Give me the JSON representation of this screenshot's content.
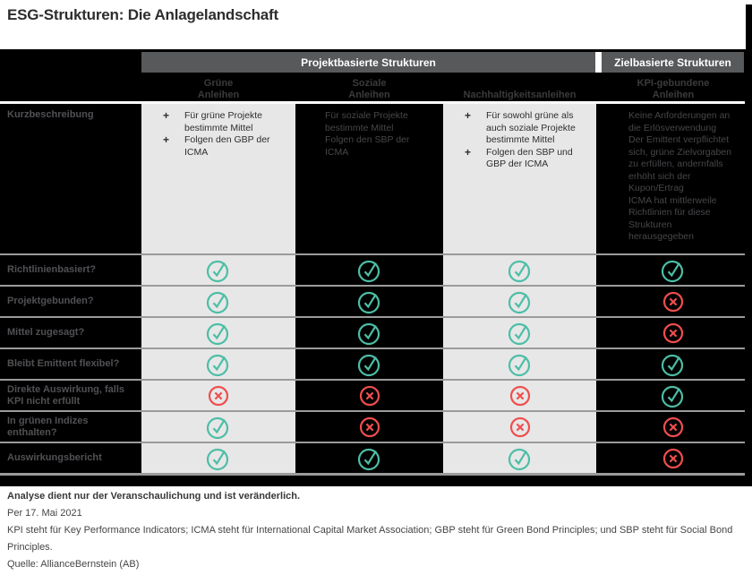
{
  "title": "ESG-Strukturen: Die Anlagelandschaft",
  "table": {
    "group_headers": [
      {
        "label": "Projektbasierte Strukturen"
      },
      {
        "label": "Zielbasierte Strukturen"
      }
    ],
    "columns": [
      {
        "label": "Grüne Anleihen",
        "lines": [
          "Grüne",
          "Anleihen"
        ]
      },
      {
        "label": "Soziale Anleihen",
        "lines": [
          "Soziale",
          "Anleihen"
        ]
      },
      {
        "label": "Nachhaltigkeitsanleihen",
        "lines": [
          "Nachhaltigkeitsanleihen"
        ]
      },
      {
        "label": "KPI-gebundene Anleihen",
        "lines": [
          "KPI-gebundene",
          "Anleihen"
        ]
      }
    ],
    "description_row": {
      "label": "Kurzbeschreibung",
      "bullet": "+",
      "cells": [
        {
          "style": "light",
          "items": [
            "Für grüne Projekte bestimmte Mittel",
            "Folgen den GBP der ICMA"
          ]
        },
        {
          "style": "dark",
          "items": [
            "Für soziale Projekte bestimmte Mittel",
            "Folgen den SBP der ICMA"
          ]
        },
        {
          "style": "light",
          "items": [
            "Für sowohl grüne als auch soziale Projekte bestimmte Mittel",
            "Folgen den SBP und GBP der ICMA"
          ]
        },
        {
          "style": "dark",
          "items": [
            "Keine Anforderungen an die Erlösverwendung",
            "Der Emittent verpflichtet sich, grüne Zielvorgaben zu erfüllen, andernfalls erhöht sich der Kupon/Ertrag",
            "ICMA hat mittlerweile Richtlinien für diese Strukturen herausgegeben"
          ]
        }
      ]
    },
    "mark_rows": [
      {
        "label": "Richtlinienbasiert?",
        "marks": [
          "check",
          "check",
          "check",
          "check"
        ]
      },
      {
        "label": "Projektgebunden?",
        "marks": [
          "check",
          "check",
          "check",
          "cross"
        ]
      },
      {
        "label": "Mittel zugesagt?",
        "marks": [
          "check",
          "check",
          "check",
          "cross"
        ]
      },
      {
        "label": "Bleibt Emittent flexibel?",
        "marks": [
          "check",
          "check",
          "check",
          "check"
        ]
      },
      {
        "label": "Direkte Auswirkung, falls KPI nicht erfüllt",
        "marks": [
          "cross",
          "cross",
          "cross",
          "check"
        ]
      },
      {
        "label": "In grünen Indizes enthalten?",
        "marks": [
          "check",
          "cross",
          "cross",
          "cross"
        ]
      },
      {
        "label": "Auswirkungsbericht",
        "marks": [
          "check",
          "check",
          "check",
          "cross"
        ]
      }
    ]
  },
  "footnotes": {
    "disclaimer": "Analyse dient nur der Veranschaulichung und ist veränderlich.",
    "as_of": "Per 17. Mai 2021",
    "definitions": "KPI steht für Key Performance Indicators; ICMA steht für International Capital Market Association; GBP steht für Green Bond Principles; und SBP steht für Social Bond Principles.",
    "source": "Quelle: AllianceBernstein (AB)"
  },
  "colors": {
    "band_gray": "#58595b",
    "table_bg": "#000000",
    "cell_light": "#e7e7e7",
    "check_teal": "#4cbea6",
    "cross_red": "#f04e4e",
    "separator_gray": "#9b9b9b"
  },
  "icons": {
    "check": "check-circle-icon",
    "cross": "cross-circle-icon"
  },
  "chart_data": {
    "type": "table",
    "title": "ESG-Strukturen: Die Anlagelandschaft",
    "column_groups": [
      {
        "label": "Projektbasierte Strukturen",
        "columns": [
          "Grüne Anleihen",
          "Soziale Anleihen",
          "Nachhaltigkeitsanleihen"
        ]
      },
      {
        "label": "Zielbasierte Strukturen",
        "columns": [
          "KPI-gebundene Anleihen"
        ]
      }
    ],
    "rows": [
      {
        "label": "Kurzbeschreibung",
        "values": [
          "Für grüne Projekte bestimmte Mittel; Folgen den GBP der ICMA",
          "Für soziale Projekte bestimmte Mittel; Folgen den SBP der ICMA",
          "Für sowohl grüne als auch soziale Projekte bestimmte Mittel; Folgen den SBP und GBP der ICMA",
          "Keine Anforderungen an die Erlösverwendung; Der Emittent verpflichtet sich, grüne Zielvorgaben zu erfüllen, andernfalls erhöht sich der Kupon/Ertrag; ICMA hat mittlerweile Richtlinien für diese Strukturen herausgegeben"
        ]
      },
      {
        "label": "Richtlinienbasiert?",
        "values": [
          "ja",
          "ja",
          "ja",
          "ja"
        ]
      },
      {
        "label": "Projektgebunden?",
        "values": [
          "ja",
          "ja",
          "ja",
          "nein"
        ]
      },
      {
        "label": "Mittel zugesagt?",
        "values": [
          "ja",
          "ja",
          "ja",
          "nein"
        ]
      },
      {
        "label": "Bleibt Emittent flexibel?",
        "values": [
          "ja",
          "ja",
          "ja",
          "ja"
        ]
      },
      {
        "label": "Direkte Auswirkung, falls KPI nicht erfüllt",
        "values": [
          "nein",
          "nein",
          "nein",
          "ja"
        ]
      },
      {
        "label": "In grünen Indizes enthalten?",
        "values": [
          "ja",
          "nein",
          "nein",
          "nein"
        ]
      },
      {
        "label": "Auswirkungsbericht",
        "values": [
          "ja",
          "ja",
          "ja",
          "nein"
        ]
      }
    ]
  }
}
